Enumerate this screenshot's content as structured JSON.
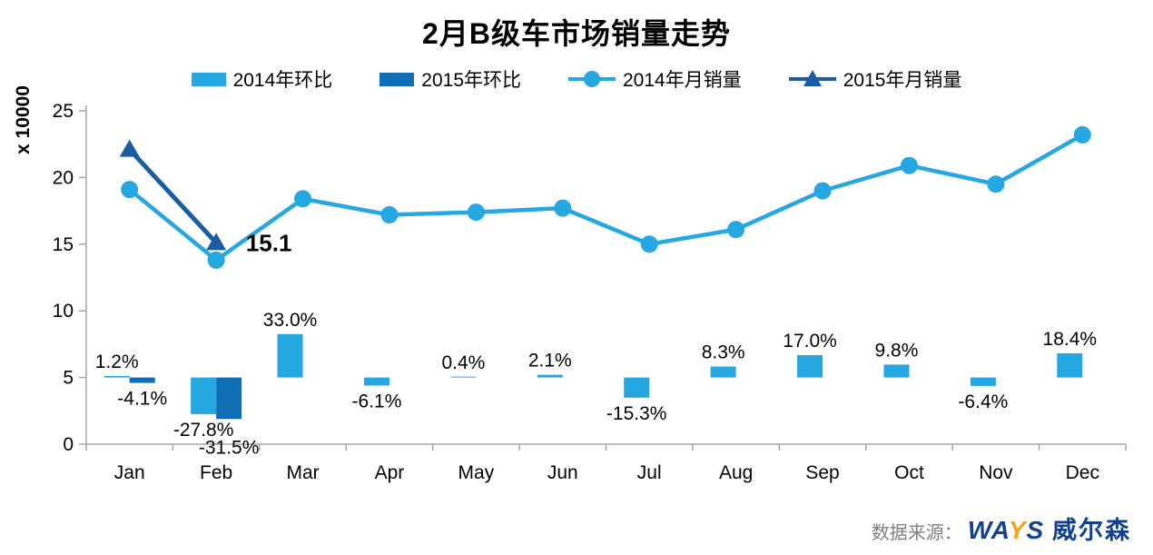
{
  "title": "2月B级车市场销量走势",
  "legend": [
    {
      "label": "2014年环比",
      "marker": "bar",
      "color": "#25A7E2"
    },
    {
      "label": "2015年环比",
      "marker": "bar",
      "color": "#0E6DB5"
    },
    {
      "label": "2014年月销量",
      "marker": "line-circle",
      "color": "#25A7E2"
    },
    {
      "label": "2015年月销量",
      "marker": "line-triangle",
      "color": "#1B5CA3"
    }
  ],
  "chart_data": {
    "type": "combo-bar-line",
    "categories": [
      "Jan",
      "Feb",
      "Mar",
      "Apr",
      "May",
      "Jun",
      "Jul",
      "Aug",
      "Sep",
      "Oct",
      "Nov",
      "Dec"
    ],
    "ylabel": "x 10000",
    "yticks": [
      25,
      20,
      15,
      10,
      5,
      0
    ],
    "ylim": [
      0,
      25
    ],
    "grid": false,
    "legend_position": "top",
    "pct_baseline_value": 5,
    "pct_per_axis_unit": 10.125,
    "series": [
      {
        "name": "2014年环比",
        "type": "bar",
        "unit": "%",
        "values": [
          1.2,
          -27.8,
          33.0,
          -6.1,
          0.4,
          2.1,
          -15.3,
          8.3,
          17.0,
          9.8,
          -6.4,
          18.4
        ],
        "labels": [
          "1.2%",
          "-27.8%",
          "33.0%",
          "-6.1%",
          "0.4%",
          "2.1%",
          "-15.3%",
          "8.3%",
          "17.0%",
          "9.8%",
          "-6.4%",
          "18.4%"
        ]
      },
      {
        "name": "2015年环比",
        "type": "bar",
        "unit": "%",
        "values": [
          -4.1,
          -31.5,
          null,
          null,
          null,
          null,
          null,
          null,
          null,
          null,
          null,
          null
        ],
        "labels": [
          "-4.1%",
          "-31.5%",
          null,
          null,
          null,
          null,
          null,
          null,
          null,
          null,
          null,
          null
        ]
      },
      {
        "name": "2014年月销量",
        "type": "line",
        "marker": "circle",
        "values": [
          19.1,
          13.8,
          18.4,
          17.2,
          17.4,
          17.7,
          15.0,
          16.1,
          19.0,
          20.9,
          19.5,
          23.2
        ]
      },
      {
        "name": "2015年月销量",
        "type": "line",
        "marker": "triangle",
        "values": [
          22.1,
          15.1,
          null,
          null,
          null,
          null,
          null,
          null,
          null,
          null,
          null,
          null
        ],
        "point_label": {
          "index": 1,
          "text": "15.1"
        }
      }
    ]
  },
  "colors": {
    "light_blue": "#25A7E2",
    "dark_bar_blue": "#0E6DB5",
    "navy_line": "#1B5CA3",
    "axis_gray": "#A6A6A6",
    "label_black": "#000000",
    "source_gray": "#7F7F7F",
    "logo_navy": "#14418C",
    "logo_orange": "#F7A11A"
  },
  "footer": {
    "source_label": "数据来源：",
    "logo_wa": "WA",
    "logo_y": "Y",
    "logo_s": "S",
    "logo_name": "威尔森"
  }
}
